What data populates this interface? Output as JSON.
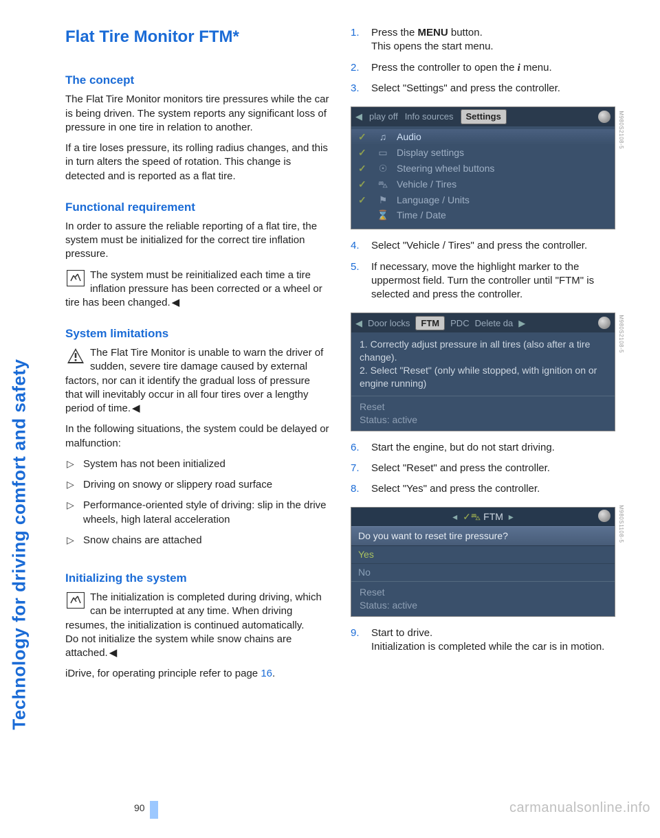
{
  "sidebar": {
    "label": "Technology for driving comfort and safety"
  },
  "left": {
    "title": "Flat Tire Monitor FTM*",
    "concept_h": "The concept",
    "concept_p1": "The Flat Tire Monitor monitors tire pressures while the car is being driven. The system reports any significant loss of pressure in one tire in relation to another.",
    "concept_p2": "If a tire loses pressure, its rolling radius changes, and this in turn alters the speed of rotation. This change is detected and is reported as a flat tire.",
    "func_h": "Functional requirement",
    "func_p": "In order to assure the reliable reporting of a flat tire, the system must be initialized for the correct tire inflation pressure.",
    "func_note": "The system must be reinitialized each time a tire inflation pressure has been corrected or a wheel or tire has been changed.",
    "lim_h": "System limitations",
    "lim_warn": "The Flat Tire Monitor is unable to warn the driver of sudden, severe tire damage caused by external factors, nor can it identify the gradual loss of pressure that will inevitably occur in all four tires over a lengthy period of time.",
    "lim_p": "In the following situations, the system could be delayed or malfunction:",
    "lim_items": [
      "System has not been initialized",
      "Driving on snowy or slippery road surface",
      "Performance-oriented style of driving: slip in the drive wheels, high lateral acceleration",
      "Snow chains are attached"
    ],
    "init_h": "Initializing the system",
    "init_note_a": "The initialization is completed during driving, which can be interrupted at any time. When driving resumes, the initialization is continued automatically.",
    "init_note_b": "Do not initialize the system while snow chains are attached.",
    "idrive_prefix": "iDrive, for operating principle refer to page ",
    "idrive_page": "16",
    "idrive_suffix": "."
  },
  "right": {
    "step1_a": "Press the ",
    "step1_menu": "MENU",
    "step1_b": " button.",
    "step1_c": "This opens the start menu.",
    "step2_a": "Press the controller to open the ",
    "step2_b": " menu.",
    "step3": "Select \"Settings\" and press the controller.",
    "step4": "Select \"Vehicle / Tires\" and press the controller.",
    "step5": "If necessary, move the highlight marker to the uppermost field. Turn the controller until \"FTM\" is selected and press the controller.",
    "step6": "Start the engine, but do not start driving.",
    "step7": "Select \"Reset\" and press the controller.",
    "step8": "Select \"Yes\" and press the controller.",
    "step9_a": "Start to drive.",
    "step9_b": "Initialization is completed while the car is in motion."
  },
  "shots": {
    "s1": {
      "tabs_left": "play off",
      "tab_info": "Info sources",
      "tab_sel": "Settings",
      "rows": [
        {
          "chk": "✓",
          "ico": "♫",
          "label": "Audio",
          "sel": true
        },
        {
          "chk": "✓",
          "ico": "▭",
          "label": "Display settings",
          "sel": false
        },
        {
          "chk": "✓",
          "ico": "☉",
          "label": "Steering wheel buttons",
          "sel": false
        },
        {
          "chk": "✓",
          "ico": "⛍",
          "label": "Vehicle / Tires",
          "sel": false
        },
        {
          "chk": "✓",
          "ico": "⚑",
          "label": "Language / Units",
          "sel": false
        },
        {
          "chk": " ",
          "ico": "⌛",
          "label": "Time / Date",
          "sel": false
        }
      ],
      "code": "M980S2108-5"
    },
    "s2": {
      "tab_door": "Door locks",
      "tab_ftm": "FTM",
      "tab_pdc": "PDC",
      "tab_del": "Delete da",
      "body1": "1. Correctly adjust pressure in all tires (also after a tire change).",
      "body2": "2. Select \"Reset\" (only while stopped, with ignition on or engine running)",
      "reset": "Reset",
      "status": "Status:  active",
      "code": "M980S2108-5"
    },
    "s3": {
      "top": "FTM",
      "q": "Do you want to reset tire pressure?",
      "yes": "Yes",
      "no": "No",
      "reset": "Reset",
      "status": "Status:   active",
      "code": "M980S1108-5"
    }
  },
  "footer": {
    "page": "90",
    "watermark": "carmanualsonline.info"
  }
}
